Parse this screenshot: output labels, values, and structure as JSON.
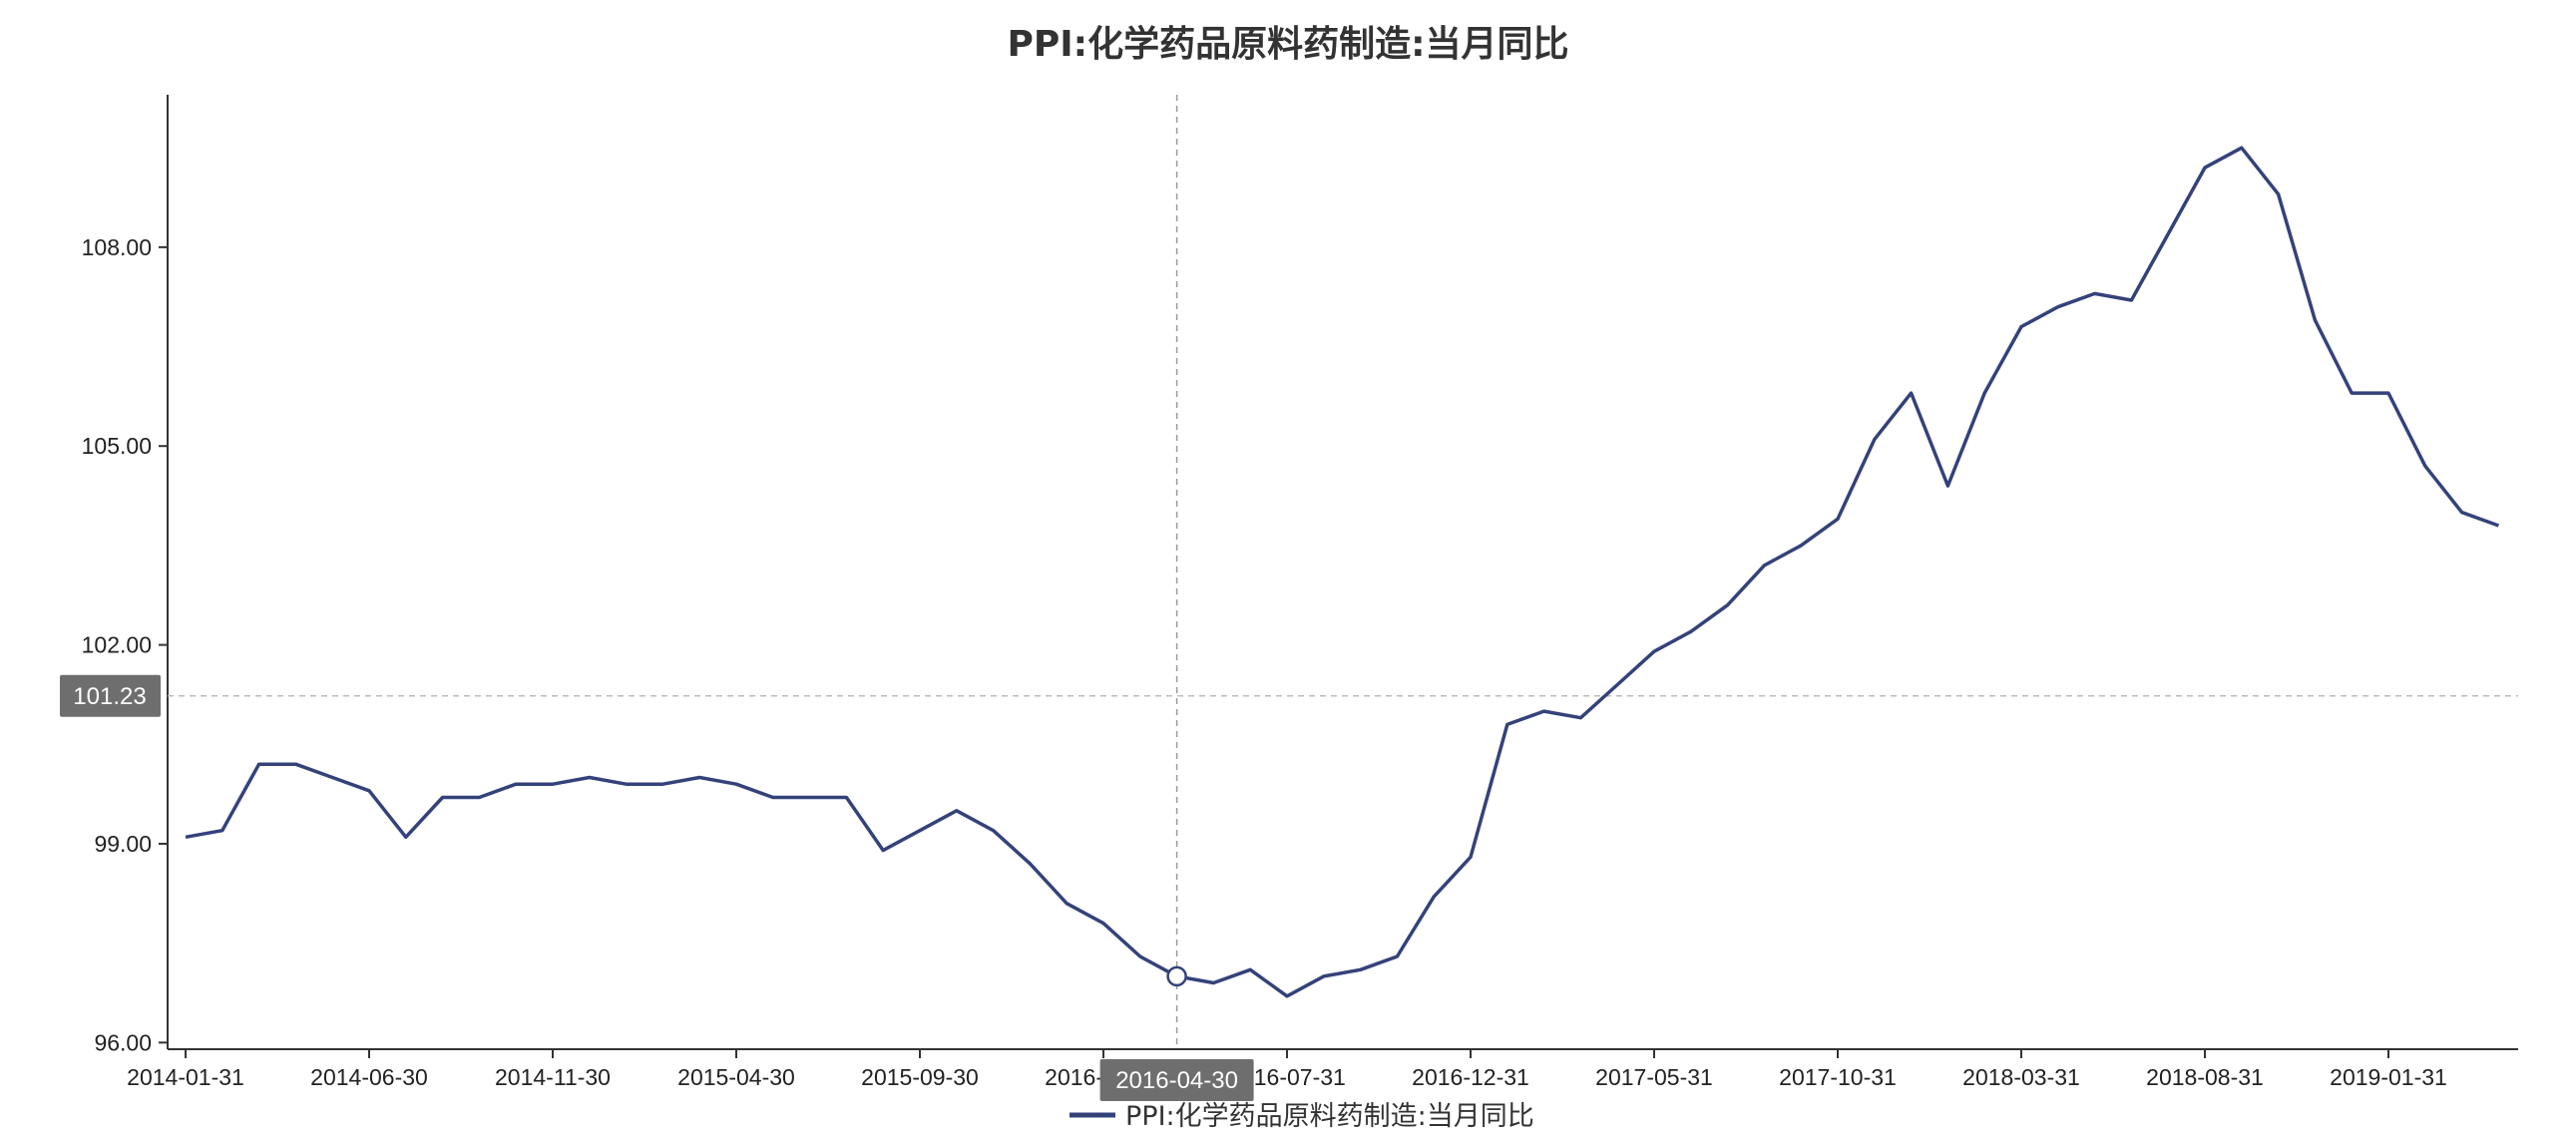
{
  "chart_data": {
    "type": "line",
    "title": "PPI:化学药品原料药制造:当月同比",
    "xlabel": "",
    "ylabel": "",
    "ylim": [
      95.9,
      110.3
    ],
    "y_ticks": [
      "96.00",
      "99.00",
      "102.00",
      "105.00",
      "108.00"
    ],
    "x_tick_labels": [
      "2014-01-31",
      "2014-06-30",
      "2014-11-30",
      "2015-04-30",
      "2015-09-30",
      "2016-02-29",
      "2016-07-31",
      "2016-12-31",
      "2017-05-31",
      "2017-10-31",
      "2018-03-31",
      "2018-08-31",
      "2019-01-31"
    ],
    "grid": false,
    "legend_position": "bottom-center",
    "color": "#34427a",
    "series": [
      {
        "name": "PPI:化学药品原料药制造:当月同比",
        "x": [
          "2014-01-31",
          "2014-02-28",
          "2014-03-31",
          "2014-04-30",
          "2014-05-31",
          "2014-06-30",
          "2014-07-31",
          "2014-08-31",
          "2014-09-30",
          "2014-10-31",
          "2014-11-30",
          "2014-12-31",
          "2015-01-31",
          "2015-02-28",
          "2015-03-31",
          "2015-04-30",
          "2015-05-31",
          "2015-06-30",
          "2015-07-31",
          "2015-08-31",
          "2015-09-30",
          "2015-10-31",
          "2015-11-30",
          "2015-12-31",
          "2016-01-31",
          "2016-02-29",
          "2016-03-31",
          "2016-04-30",
          "2016-05-31",
          "2016-06-30",
          "2016-07-31",
          "2016-08-31",
          "2016-09-30",
          "2016-10-31",
          "2016-11-30",
          "2016-12-31",
          "2017-01-31",
          "2017-02-28",
          "2017-03-31",
          "2017-04-30",
          "2017-05-31",
          "2017-06-30",
          "2017-07-31",
          "2017-08-31",
          "2017-09-30",
          "2017-10-31",
          "2017-11-30",
          "2017-12-31",
          "2018-01-31",
          "2018-02-28",
          "2018-03-31",
          "2018-04-30",
          "2018-05-31",
          "2018-06-30",
          "2018-07-31",
          "2018-08-31",
          "2018-09-30",
          "2018-10-31",
          "2018-11-30",
          "2018-12-31",
          "2019-01-31",
          "2019-02-28",
          "2019-03-31",
          "2019-04-30",
          "2019-05-31"
        ],
        "values": [
          99.1,
          99.2,
          100.2,
          100.2,
          100.0,
          99.8,
          99.1,
          99.7,
          99.7,
          99.9,
          99.9,
          100.0,
          99.9,
          99.9,
          100.0,
          99.9,
          99.7,
          99.7,
          99.7,
          98.9,
          99.2,
          99.5,
          99.2,
          98.7,
          98.1,
          97.8,
          97.3,
          97.0,
          96.9,
          97.1,
          96.7,
          97.0,
          97.1,
          97.3,
          98.2,
          98.8,
          100.8,
          101.0,
          100.9,
          101.4,
          101.9,
          102.2,
          102.6,
          103.2,
          103.5,
          103.9,
          105.1,
          105.8,
          104.4,
          105.8,
          106.8,
          107.1,
          107.3,
          107.2,
          108.2,
          109.2,
          109.5,
          108.8,
          106.9,
          105.8,
          105.8,
          104.7,
          104.0,
          103.8,
          null
        ]
      }
    ],
    "pointer": {
      "x_label": "2016-04-30",
      "y_label": "101.23",
      "y_value": 101.23,
      "point_index": 27
    }
  }
}
